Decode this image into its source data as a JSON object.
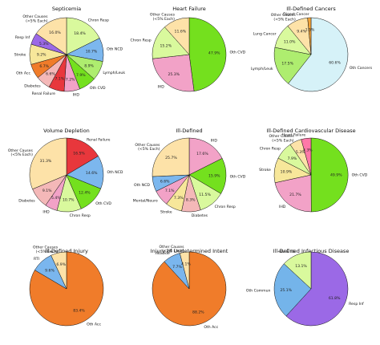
{
  "colors": {
    "Chron Resp": "#d9f99d",
    "Oth NCD": "#7cb7ee",
    "Lymph/Leuk": "#aeed6f",
    "Oth CVD": "#74e01e",
    "IHD": "#f2a2c7",
    "Renal Failure": "#e8373c",
    "Diabetes": "#f4b8b8",
    "Oth Acc": "#f07c2a",
    "Stroke": "#f7e79a",
    "Resp Inf": "#9b69e6",
    "Other Causes (<5% Each)": "#fde2a8",
    "Oth Cancers": "#d6f2f8",
    "Lung Cancer": "#d9f99d",
    "Digest Cancer": "#f2a33a",
    "RTI": "#7ab6ee",
    "Suicide": "#7ab6ee",
    "HIV & TB": "#d9f99d",
    "Oth Commun": "#74b4ea",
    "Mental/Neuro": "#f2a2c7",
    "Heart Failure": "#ff78a8"
  },
  "chart_data": [
    {
      "type": "pie",
      "title": "Septicemia",
      "slices": [
        {
          "label": "Chron Resp",
          "value": 18.4,
          "pct": "18.4%"
        },
        {
          "label": "Oth NCD",
          "value": 10.7,
          "pct": "10.7%"
        },
        {
          "label": "Lymph/Leuk",
          "value": 8.9,
          "pct": "8.9%"
        },
        {
          "label": "Oth CVD",
          "value": 7.9,
          "pct": "7.9%"
        },
        {
          "label": "IHD",
          "value": 7.2,
          "pct": "7.2%"
        },
        {
          "label": "Renal Failure",
          "value": 7.1,
          "pct": "7.1%"
        },
        {
          "label": "Diabetes",
          "value": 6.6,
          "pct": "6.6%"
        },
        {
          "label": "Oth Acc",
          "value": 6.7,
          "pct": "6.7%"
        },
        {
          "label": "Stroke",
          "value": 9.2,
          "pct": "9.2%"
        },
        {
          "label": "Resp Inf",
          "value": 5.3,
          "pct": "5.3%"
        },
        {
          "label": "Other Causes (<5% Each)",
          "value": 16.0,
          "pct": "16.0%"
        }
      ]
    },
    {
      "type": "pie",
      "title": "Heart Failure",
      "slices": [
        {
          "label": "Oth CVD",
          "value": 47.9,
          "pct": "47.9%"
        },
        {
          "label": "IHD",
          "value": 25.3,
          "pct": "25.3%"
        },
        {
          "label": "Chron Resp",
          "value": 15.2,
          "pct": "15.2%"
        },
        {
          "label": "Other Causes (<5% Each)",
          "value": 11.6,
          "pct": "11.6%"
        }
      ]
    },
    {
      "type": "pie",
      "title": "Ill-Defined Cancers",
      "slices": [
        {
          "label": "Oth Cancers",
          "value": 60.6,
          "pct": "60.6%"
        },
        {
          "label": "Lymph/Leuk",
          "value": 17.5,
          "pct": "17.5%"
        },
        {
          "label": "Lung Cancer",
          "value": 11.0,
          "pct": "11.0%"
        },
        {
          "label": "Other Causes (<5% Each)",
          "value": 9.4,
          "pct": "9.4%"
        },
        {
          "label": "Digest Cancer",
          "value": 1.5,
          "pct": "1.5%"
        }
      ]
    },
    {
      "type": "pie",
      "title": "Volume Depletion",
      "slices": [
        {
          "label": "Renal Failure",
          "value": 16.5,
          "pct": "16.5%"
        },
        {
          "label": "Oth NCD",
          "value": 14.6,
          "pct": "14.6%"
        },
        {
          "label": "Oth CVD",
          "value": 12.4,
          "pct": "12.4%"
        },
        {
          "label": "Chron Resp",
          "value": 10.7,
          "pct": "10.7%"
        },
        {
          "label": "IHD",
          "value": 5.4,
          "pct": "5.4%"
        },
        {
          "label": "Diabetes",
          "value": 9.1,
          "pct": "9.1%"
        },
        {
          "label": "Other Causes (<5% Each)",
          "value": 31.3,
          "pct": "31.3%"
        }
      ]
    },
    {
      "type": "pie",
      "title": "Ill-Defined",
      "slices": [
        {
          "label": "IHD",
          "value": 17.6,
          "pct": "17.6%"
        },
        {
          "label": "Oth CVD",
          "value": 15.9,
          "pct": "15.9%"
        },
        {
          "label": "Chron Resp",
          "value": 11.5,
          "pct": "11.5%"
        },
        {
          "label": "Diabetes",
          "value": 8.3,
          "pct": "8.3%"
        },
        {
          "label": "Stroke",
          "value": 7.3,
          "pct": "7.3%"
        },
        {
          "label": "Mental/Neuro",
          "value": 7.1,
          "pct": "7.1%"
        },
        {
          "label": "Oth NCD",
          "value": 6.6,
          "pct": "6.6%"
        },
        {
          "label": "Other Causes (<5% Each)",
          "value": 25.7,
          "pct": "25.7%"
        }
      ]
    },
    {
      "type": "pie",
      "title": "Ill-Defined Cardiovascular Disease",
      "slices": [
        {
          "label": "Oth CVD",
          "value": 49.9,
          "pct": "49.9%"
        },
        {
          "label": "IHD",
          "value": 21.7,
          "pct": "21.7%"
        },
        {
          "label": "Stroke",
          "value": 10.9,
          "pct": "10.9%"
        },
        {
          "label": "Chron Resp",
          "value": 7.9,
          "pct": "7.9%"
        },
        {
          "label": "Other Causes (<5% Each)",
          "value": 5.3,
          "pct": "5.3%"
        },
        {
          "label": "Heart Failure",
          "value": 4.3,
          "pct": "4.3%"
        }
      ]
    },
    {
      "type": "pie",
      "title": "Ill-Defined Injury",
      "slices": [
        {
          "label": "Oth Acc",
          "value": 83.4,
          "pct": "83.4%"
        },
        {
          "label": "RTI",
          "value": 9.6,
          "pct": "9.6%"
        },
        {
          "label": "Other Causes (<5% Each)",
          "value": 6.9,
          "pct": "6.9%"
        }
      ]
    },
    {
      "type": "pie",
      "title": "Injury of Undetermined Intent",
      "slices": [
        {
          "label": "Oth Acc",
          "value": 88.2,
          "pct": "88.2%"
        },
        {
          "label": "Suicide",
          "value": 7.7,
          "pct": "7.7%"
        },
        {
          "label": "Other Causes (<5% Each)",
          "value": 4.1,
          "pct": "4.1%"
        }
      ]
    },
    {
      "type": "pie",
      "title": "Ill-Defined Infectious Disease",
      "slices": [
        {
          "label": "Resp Inf",
          "value": 61.8,
          "pct": "61.8%"
        },
        {
          "label": "Oth Commun",
          "value": 25.1,
          "pct": "25.1%"
        },
        {
          "label": "HIV & TB",
          "value": 13.1,
          "pct": "13.1%"
        }
      ]
    }
  ]
}
